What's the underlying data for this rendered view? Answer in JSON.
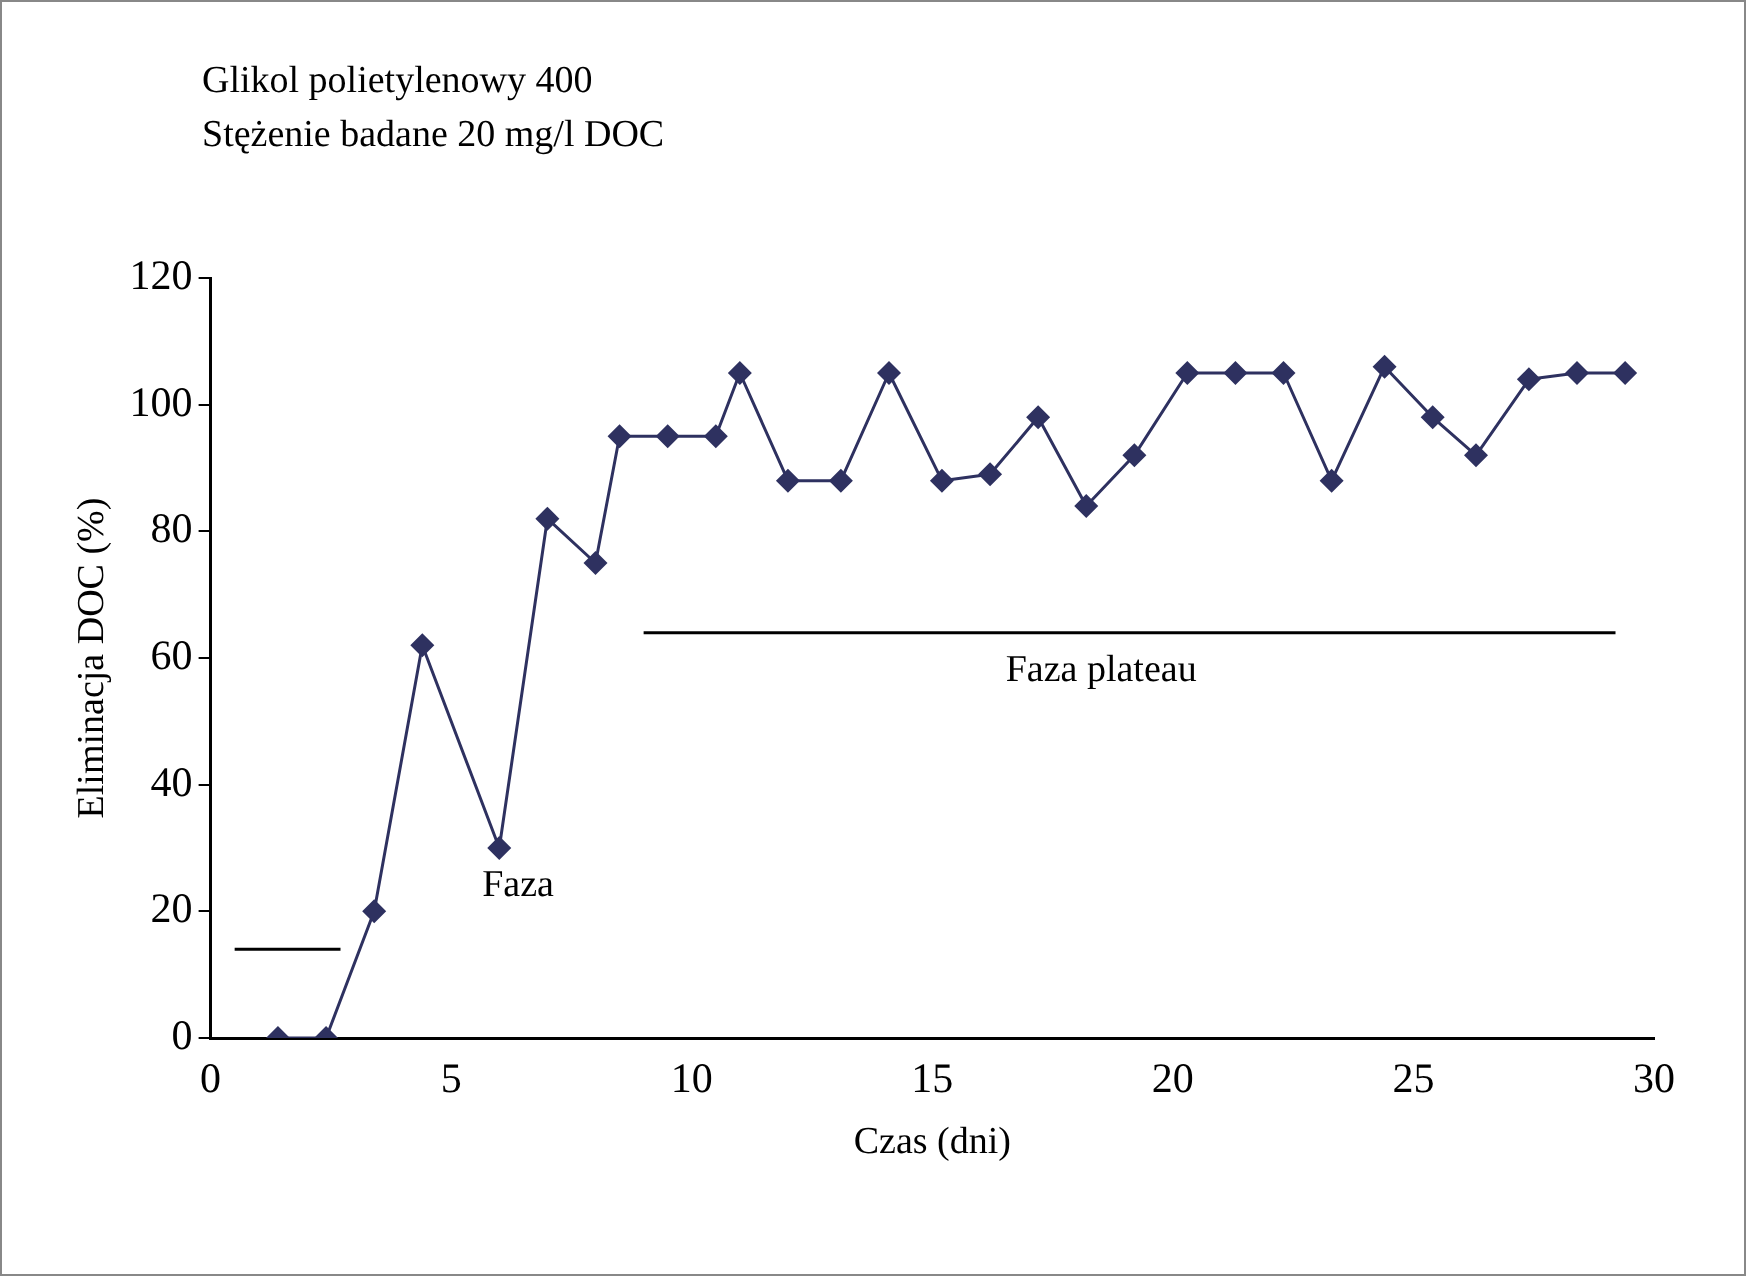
{
  "chart_data": {
    "type": "line",
    "title": "Glikol polietylenowy 400",
    "subtitle": "Stężenie badane 20 mg/l DOC",
    "xlabel": "Czas (dni)",
    "ylabel": "Eliminacja DOC (%)",
    "series": [
      {
        "color": "#2e3160",
        "x": [
          1.4,
          2.4,
          3.4,
          4.4,
          6.0,
          7.0,
          8.0,
          8.5,
          9.5,
          10.5,
          11.0,
          12.0,
          13.1,
          14.1,
          15.2,
          16.2,
          17.2,
          18.2,
          19.2,
          20.3,
          21.3,
          22.3,
          23.3,
          24.4,
          25.4,
          26.3,
          27.4,
          28.4,
          29.4
        ],
        "values": [
          0,
          0,
          20,
          62,
          30,
          82,
          75,
          95,
          95,
          95,
          105,
          88,
          88,
          105,
          88,
          89,
          98,
          84,
          92,
          105,
          105,
          105,
          88,
          106,
          98,
          92,
          104,
          105,
          105
        ],
        "marker": "diamond"
      },
      {
        "type": "line",
        "color": "#000000",
        "x": [
          0.5,
          2.7
        ],
        "values": [
          14,
          14
        ],
        "marker": "none"
      },
      {
        "type": "line",
        "color": "#000000",
        "x": [
          9,
          29.2
        ],
        "values": [
          64,
          64
        ],
        "marker": "none"
      }
    ],
    "annotations": [
      "Faza",
      "Faza plateau"
    ],
    "xlim": [
      0,
      30
    ],
    "xticks": [
      0,
      5,
      10,
      15,
      20,
      25,
      30
    ],
    "ylim": [
      0,
      120
    ],
    "yticks": [
      0,
      20,
      40,
      60,
      80,
      100,
      120
    ],
    "grid": false,
    "legend": false,
    "line_style": "solid"
  }
}
